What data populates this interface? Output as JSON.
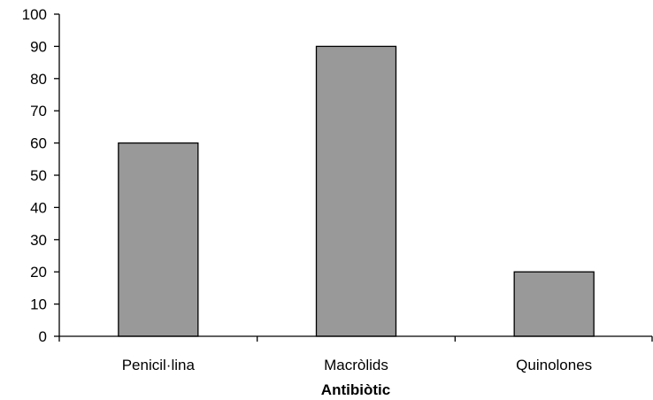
{
  "chart_data": {
    "type": "bar",
    "categories": [
      "Penicil·lina",
      "Macròlids",
      "Quinolones"
    ],
    "values": [
      60,
      90,
      20
    ],
    "title": "",
    "xlabel": "Antibiòtic",
    "ylabel": "",
    "ylim": [
      0,
      100
    ],
    "yticks": [
      0,
      10,
      20,
      30,
      40,
      50,
      60,
      70,
      80,
      90,
      100
    ],
    "grid": false,
    "legend": "none",
    "colors": {
      "bar_fill": "#999999",
      "bar_stroke": "#000000",
      "axis": "#000000",
      "background": "#ffffff"
    }
  }
}
